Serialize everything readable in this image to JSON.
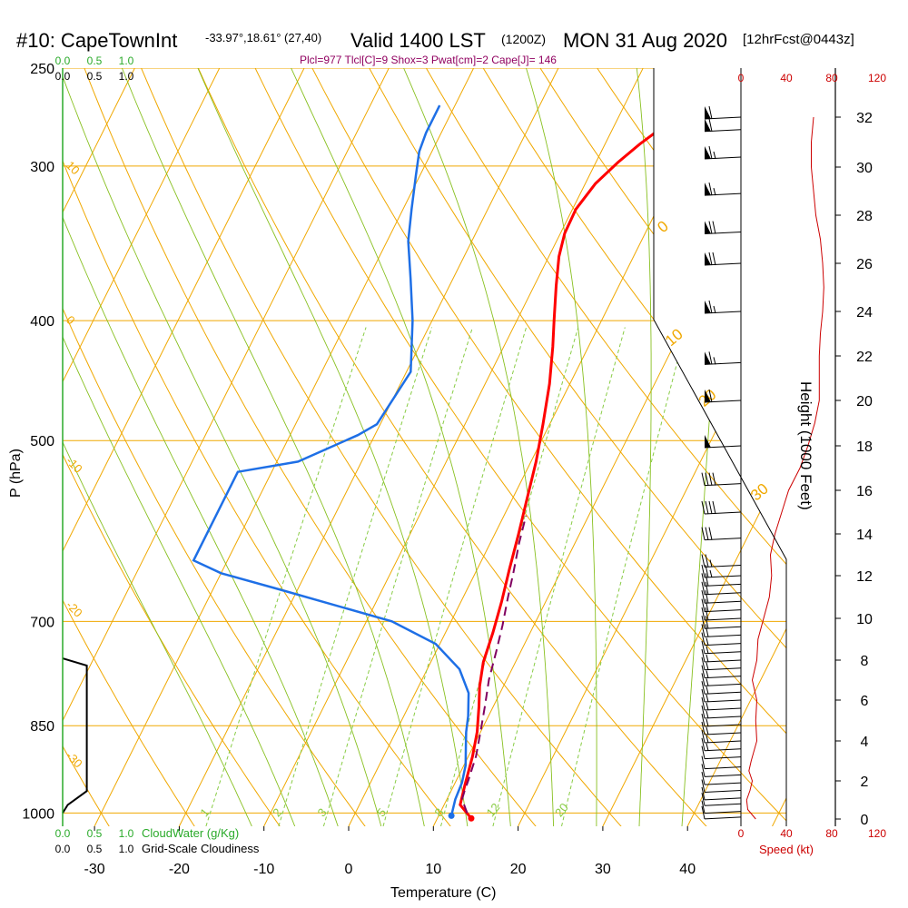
{
  "header": {
    "station": "#10: CapeTownInt",
    "coords": "-33.97°,18.61° (27,40)",
    "valid": "Valid 1400 LST",
    "utc": "(1200Z)",
    "date": "MON 31 Aug 2020",
    "fcst": "[12hrFcst@0443z]",
    "indices": "Plcl=977 Tlcl[C]=9 Shox=3 Pwat[cm]=2 Cape[J]= 146"
  },
  "colors": {
    "temp": "#ff0000",
    "dewpoint": "#1e6fe6",
    "parcel": "#800060",
    "isotherm": "#f0a800",
    "dry_adiabat": "#f0a800",
    "moist_adiabat": "#88c020",
    "mixing_ratio": "#88cc44",
    "cloud": "#2aaa2a",
    "wind_speed": "#cc0000",
    "title_accent": "#900060"
  },
  "chart_data": {
    "type": "line",
    "title": "#10: CapeTownInt",
    "xlabel": "Temperature (C)",
    "ylabel": "P (hPa)",
    "right_label": "Height (1000 Feet)",
    "x_ticks": [
      "-30",
      "-20",
      "-10",
      "0",
      "10",
      "20",
      "30",
      "40"
    ],
    "pressure_ticks": [
      "250",
      "300",
      "400",
      "500",
      "700",
      "850",
      "1000"
    ],
    "height_ticks": [
      "0",
      "2",
      "4",
      "6",
      "8",
      "10",
      "12",
      "14",
      "16",
      "18",
      "20",
      "22",
      "24",
      "26",
      "28",
      "30",
      "32"
    ],
    "grid": true,
    "isotherm_labels": [
      {
        "text": "10",
        "p": 300
      },
      {
        "text": "0",
        "p": 400
      },
      {
        "text": "-10",
        "p": 520
      },
      {
        "text": "-20",
        "p": 680
      },
      {
        "text": "-30",
        "p": 900
      }
    ],
    "dry_adiabat_labels": [
      {
        "text": "0",
        "p": 340
      },
      {
        "text": "10",
        "p": 420
      },
      {
        "text": "20",
        "p": 470
      },
      {
        "text": "30",
        "p": 560
      }
    ],
    "mixing_ratio_labels": [
      "1",
      "2",
      "3",
      "5",
      "8",
      "12",
      "20"
    ],
    "series": [
      {
        "name": "temperature",
        "points": [
          [
            14.0,
            1010
          ],
          [
            11.9,
            985
          ],
          [
            11.3,
            950
          ],
          [
            10.5,
            900
          ],
          [
            9.6,
            860
          ],
          [
            8.3,
            820
          ],
          [
            7.2,
            790
          ],
          [
            6.2,
            755
          ],
          [
            5.6,
            715
          ],
          [
            4.8,
            675
          ],
          [
            3.8,
            635
          ],
          [
            2.8,
            595
          ],
          [
            1.8,
            560
          ],
          [
            0.6,
            520
          ],
          [
            -0.8,
            485
          ],
          [
            -2.4,
            450
          ],
          [
            -4.2,
            420
          ],
          [
            -5.6,
            400
          ],
          [
            -7.4,
            375
          ],
          [
            -8.8,
            355
          ],
          [
            -9.5,
            340
          ],
          [
            -9.6,
            325
          ],
          [
            -8.8,
            310
          ],
          [
            -7.4,
            298
          ],
          [
            -5.9,
            288
          ],
          [
            -4.4,
            280
          ],
          [
            -2.5,
            270
          ],
          [
            -0.3,
            262
          ]
        ]
      },
      {
        "name": "dewpoint",
        "points": [
          [
            11.5,
            1005
          ],
          [
            11.0,
            975
          ],
          [
            10.8,
            945
          ],
          [
            10.2,
            915
          ],
          [
            9.0,
            880
          ],
          [
            8.3,
            860
          ],
          [
            7.6,
            835
          ],
          [
            6.3,
            800
          ],
          [
            3.8,
            765
          ],
          [
            -0.5,
            730
          ],
          [
            -7.0,
            700
          ],
          [
            -22.0,
            660
          ],
          [
            -30.0,
            640
          ],
          [
            -34.0,
            625
          ],
          [
            -34.0,
            530
          ],
          [
            -27.5,
            520
          ],
          [
            -22.0,
            495
          ],
          [
            -20.4,
            485
          ],
          [
            -19.5,
            440
          ],
          [
            -22.3,
            400
          ],
          [
            -25.0,
            370
          ],
          [
            -27.5,
            345
          ],
          [
            -29.0,
            325
          ],
          [
            -30.5,
            305
          ],
          [
            -31.5,
            292
          ],
          [
            -31.8,
            282
          ],
          [
            -31.8,
            268
          ]
        ]
      },
      {
        "name": "parcel",
        "points": [
          [
            13.2,
            1000
          ],
          [
            11.8,
            975
          ],
          [
            11.6,
            960
          ],
          [
            11.4,
            940
          ],
          [
            10.9,
            900
          ],
          [
            10.0,
            860
          ],
          [
            9.0,
            820
          ],
          [
            7.9,
            780
          ],
          [
            7.1,
            740
          ],
          [
            6.3,
            705
          ],
          [
            5.3,
            670
          ],
          [
            4.5,
            640
          ],
          [
            3.4,
            605
          ],
          [
            2.6,
            575
          ]
        ]
      }
    ],
    "cloud_water": {
      "label": "CloudWater (g/Kg)",
      "ticks": [
        "0.0",
        "0.5",
        "1.0"
      ],
      "values": []
    },
    "cloudiness": {
      "label": "Grid-Scale Cloudiness",
      "ticks": [
        "0.0",
        "0.5",
        "1.0"
      ],
      "values": [
        [
          0.0,
          1000
        ],
        [
          0.08,
          985
        ],
        [
          0.38,
          960
        ],
        [
          0.38,
          760
        ],
        [
          0.0,
          750
        ]
      ]
    },
    "wind_speed": {
      "label": "Speed (kt)",
      "ticks": [
        "0",
        "40",
        "80",
        "120"
      ],
      "values": [
        [
          13,
          0
        ],
        [
          6,
          0.5
        ],
        [
          5,
          1
        ],
        [
          8,
          1.5
        ],
        [
          10,
          2
        ],
        [
          7,
          2.5
        ],
        [
          9,
          3
        ],
        [
          14,
          4
        ],
        [
          13,
          5
        ],
        [
          14,
          6
        ],
        [
          10,
          7
        ],
        [
          14,
          8
        ],
        [
          15,
          9
        ],
        [
          20,
          10
        ],
        [
          25,
          11
        ],
        [
          27,
          12
        ],
        [
          26,
          13
        ],
        [
          30,
          14
        ],
        [
          36,
          15
        ],
        [
          42,
          16
        ],
        [
          52,
          17
        ],
        [
          59,
          18
        ],
        [
          65,
          19
        ],
        [
          69,
          20
        ],
        [
          69,
          21
        ],
        [
          69,
          22
        ],
        [
          70,
          23
        ],
        [
          72,
          24
        ],
        [
          73,
          25
        ],
        [
          72,
          26
        ],
        [
          70,
          27
        ],
        [
          66,
          28
        ],
        [
          64,
          29
        ],
        [
          62,
          30
        ],
        [
          62,
          31
        ],
        [
          64,
          32
        ]
      ]
    },
    "wind_barbs": [
      {
        "h": 0.1,
        "spd": 10
      },
      {
        "h": 0.4,
        "spd": 10
      },
      {
        "h": 0.8,
        "spd": 10
      },
      {
        "h": 1.1,
        "spd": 10
      },
      {
        "h": 1.5,
        "spd": 10
      },
      {
        "h": 1.9,
        "spd": 10
      },
      {
        "h": 2.3,
        "spd": 10
      },
      {
        "h": 2.7,
        "spd": 10
      },
      {
        "h": 3.2,
        "spd": 10
      },
      {
        "h": 3.6,
        "spd": 15
      },
      {
        "h": 4.0,
        "spd": 15
      },
      {
        "h": 4.4,
        "spd": 15
      },
      {
        "h": 4.8,
        "spd": 15
      },
      {
        "h": 5.2,
        "spd": 15
      },
      {
        "h": 5.6,
        "spd": 15
      },
      {
        "h": 6.0,
        "spd": 15
      },
      {
        "h": 6.4,
        "spd": 15
      },
      {
        "h": 6.8,
        "spd": 15
      },
      {
        "h": 7.2,
        "spd": 15
      },
      {
        "h": 7.6,
        "spd": 15
      },
      {
        "h": 8.0,
        "spd": 15
      },
      {
        "h": 8.4,
        "spd": 15
      },
      {
        "h": 8.8,
        "spd": 15
      },
      {
        "h": 9.2,
        "spd": 20
      },
      {
        "h": 9.6,
        "spd": 20
      },
      {
        "h": 10.0,
        "spd": 20
      },
      {
        "h": 10.4,
        "spd": 20
      },
      {
        "h": 10.8,
        "spd": 20
      },
      {
        "h": 11.2,
        "spd": 20
      },
      {
        "h": 11.6,
        "spd": 20
      },
      {
        "h": 12.0,
        "spd": 25
      },
      {
        "h": 12.5,
        "spd": 25
      },
      {
        "h": 13.8,
        "spd": 30
      },
      {
        "h": 15.0,
        "spd": 40
      },
      {
        "h": 16.3,
        "spd": 40
      },
      {
        "h": 18.0,
        "spd": 50
      },
      {
        "h": 20.0,
        "spd": 60
      },
      {
        "h": 21.7,
        "spd": 65
      },
      {
        "h": 24.0,
        "spd": 65
      },
      {
        "h": 26.0,
        "spd": 70
      },
      {
        "h": 27.3,
        "spd": 70
      },
      {
        "h": 28.9,
        "spd": 65
      },
      {
        "h": 30.4,
        "spd": 65
      },
      {
        "h": 31.5,
        "spd": 60
      },
      {
        "h": 32.6,
        "spd": 60
      }
    ]
  }
}
